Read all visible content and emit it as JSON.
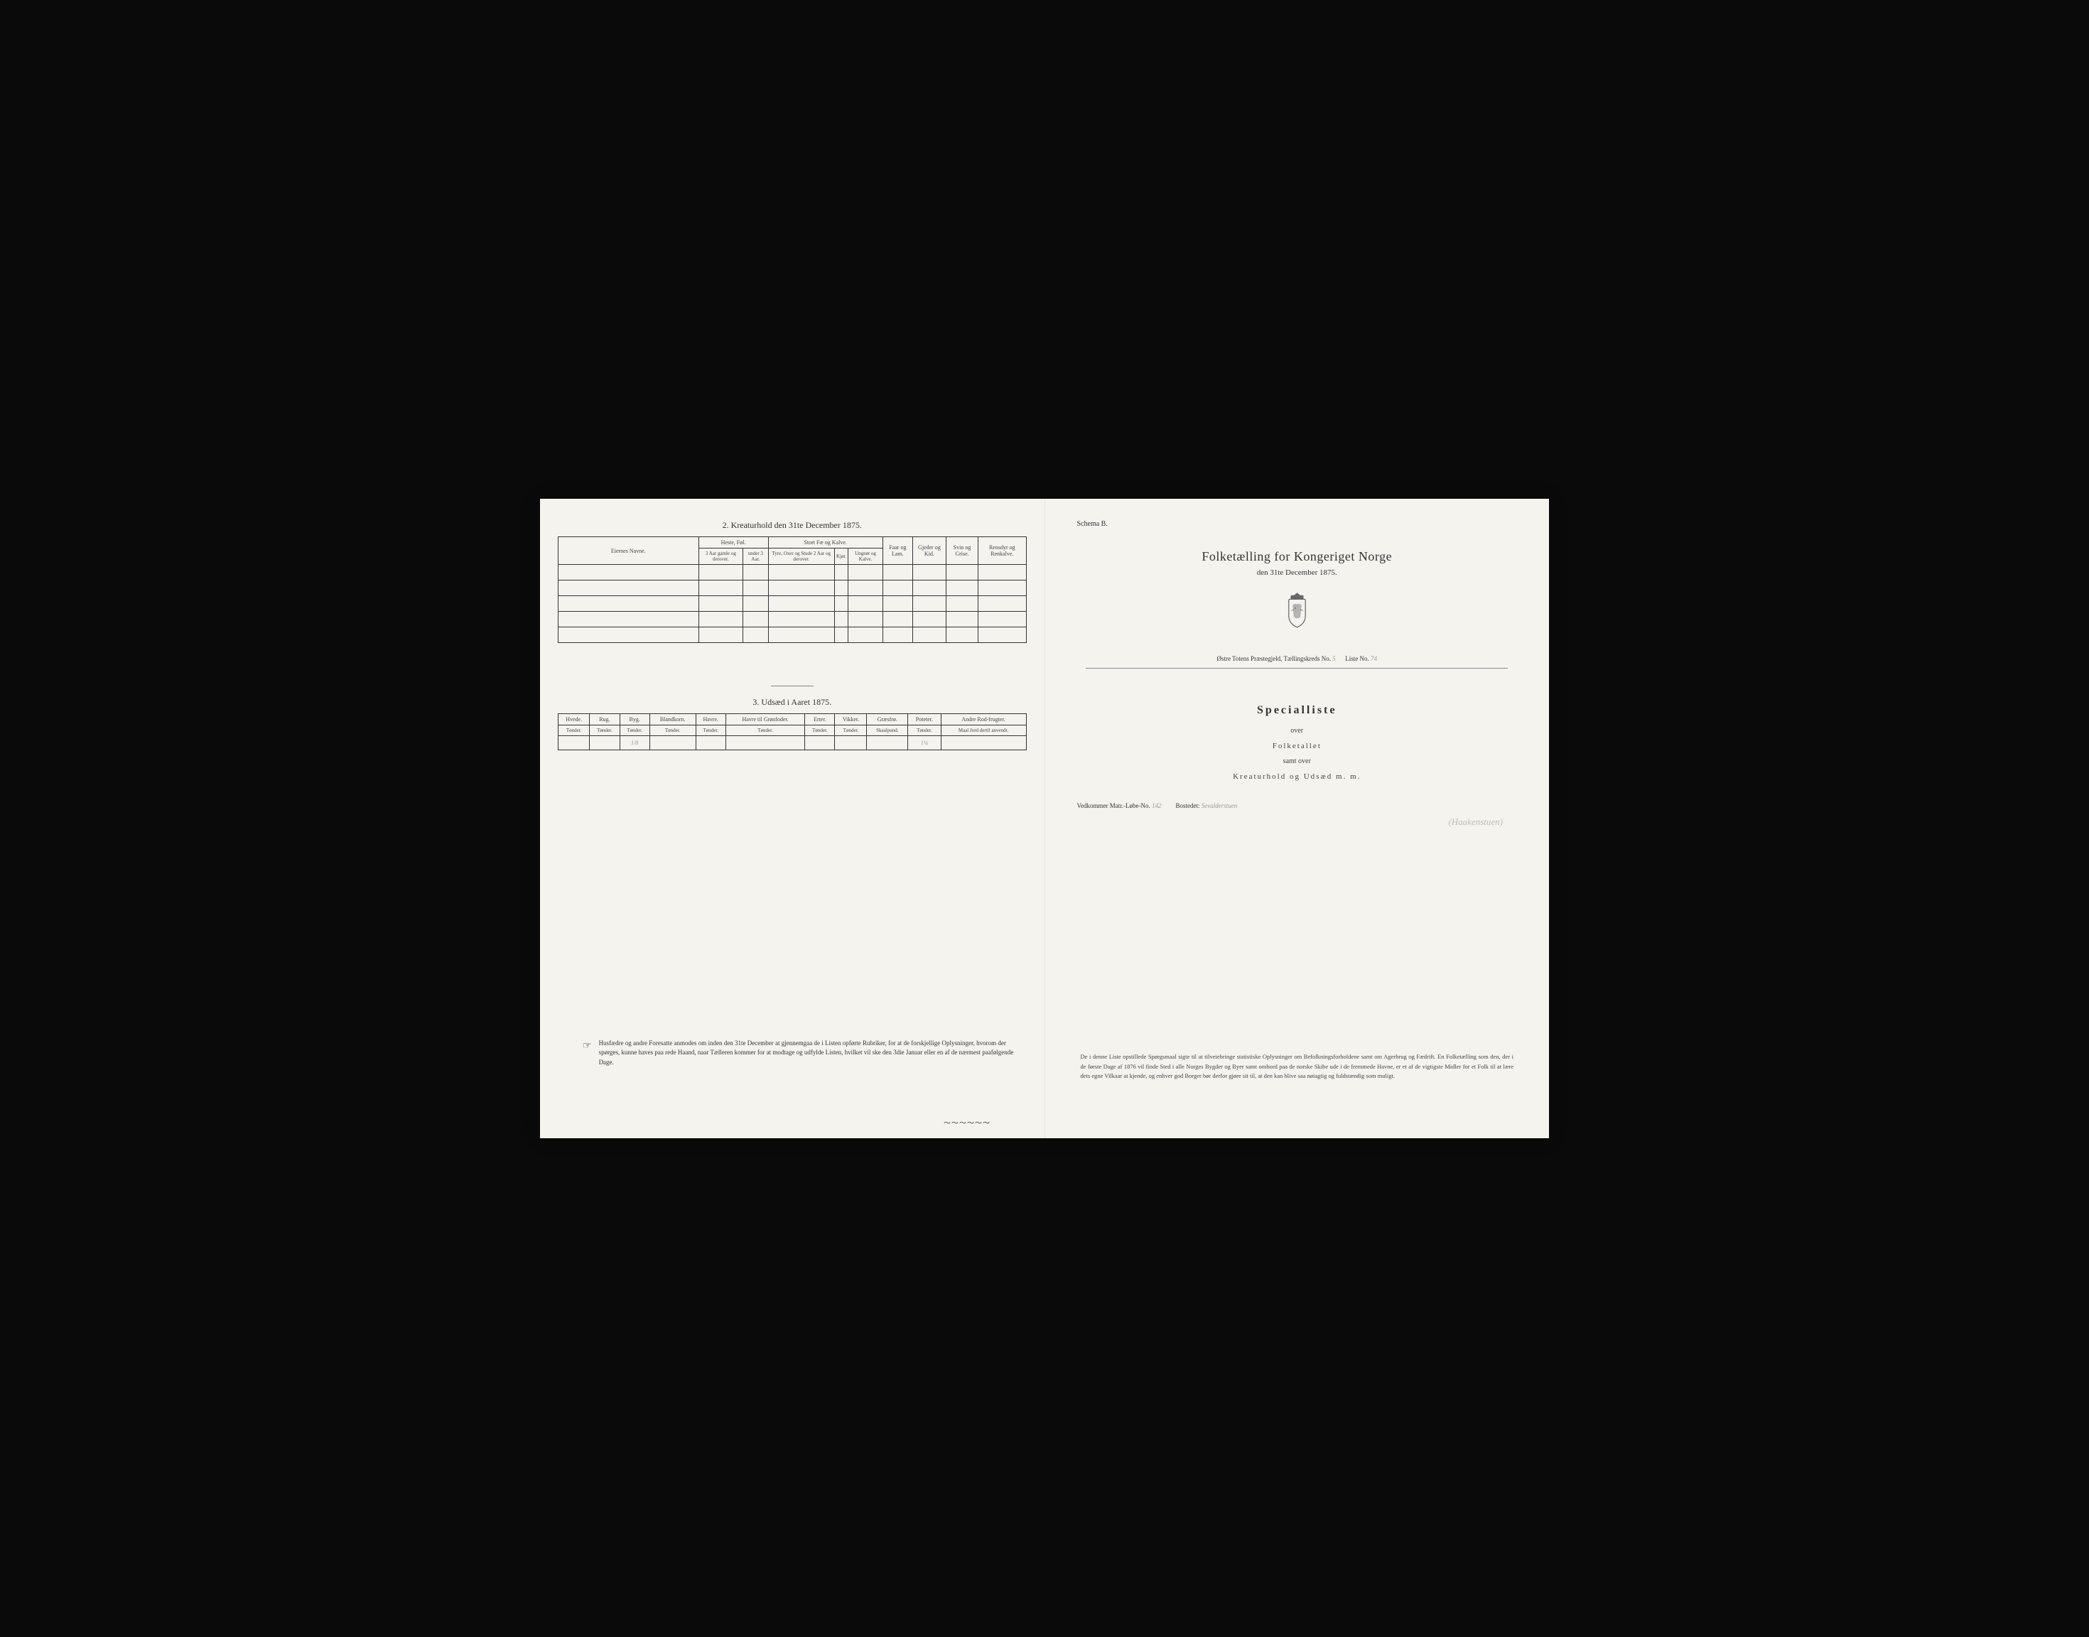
{
  "left_page": {
    "section2": {
      "title": "2.  Kreaturhold den 31te December 1875.",
      "headers": {
        "col1": "Eiernes Navne.",
        "group1": "Heste, Føl.",
        "group1_sub1": "3 Aar gamle og derover.",
        "group1_sub2": "under 3 Aar.",
        "group2": "Stort Fæ og Kalve.",
        "group2_sub1": "Tyre, Oxer og Stude 2 Aar og derover.",
        "group2_sub2": "Kjør.",
        "group2_sub3": "Ungnøt og Kalve.",
        "col_faar": "Faar og Lam.",
        "col_gjeder": "Gjeder og Kid.",
        "col_svin": "Svin og Grise.",
        "col_rensdyr": "Rensdyr og Renkalve."
      },
      "rows": [
        [
          "",
          "",
          "",
          "",
          "",
          "",
          "",
          "",
          "",
          ""
        ],
        [
          "",
          "",
          "",
          "",
          "",
          "",
          "",
          "",
          "",
          ""
        ],
        [
          "",
          "",
          "",
          "",
          "",
          "",
          "",
          "",
          "",
          ""
        ],
        [
          "",
          "",
          "",
          "",
          "",
          "",
          "",
          "",
          "",
          ""
        ],
        [
          "",
          "",
          "",
          "",
          "",
          "",
          "",
          "",
          "",
          ""
        ]
      ]
    },
    "section3": {
      "title": "3.  Udsæd i Aaret 1875.",
      "headers": [
        {
          "main": "Hvede.",
          "sub": "Tønder."
        },
        {
          "main": "Rug.",
          "sub": "Tønder."
        },
        {
          "main": "Byg.",
          "sub": "Tønder."
        },
        {
          "main": "Blandkorn.",
          "sub": "Tønder."
        },
        {
          "main": "Havre.",
          "sub": "Tønder."
        },
        {
          "main": "Havre til Grønfoder.",
          "sub": "Tønder."
        },
        {
          "main": "Erter.",
          "sub": "Tønder."
        },
        {
          "main": "Vikker.",
          "sub": "Tønder."
        },
        {
          "main": "Græsfrø.",
          "sub": "Skaalpund."
        },
        {
          "main": "Poteter.",
          "sub": "Tønder."
        },
        {
          "main": "Andre Rod-frugter.",
          "sub": "Maal Jord dertil anvendt."
        }
      ],
      "values": [
        "",
        "",
        "1/8",
        "",
        "",
        "",
        "",
        "",
        "",
        "1¼",
        ""
      ]
    },
    "footer_note": "Husfædre og andre Foresatte anmodes om inden den 31te December at gjennemgaa de i Listen opførte Rubriker, for at de forskjellige Oplysninger, hvorom der spørges, kunne haves paa rede Haand, naar Tælleren kommer for at modtage og udfylde Listen, hvilket vil ske den 3die Januar eller en af de nærmest paafølgende Dage."
  },
  "right_page": {
    "schema": "Schema B.",
    "main_title": "Folketælling for Kongeriget Norge",
    "date": "den 31te December 1875.",
    "region": "Østre Totens Præstegjeld,  Tællingskreds No.",
    "region_kreds": "5",
    "region_liste_label": "Liste No.",
    "region_liste": "74",
    "special_title": "Specialliste",
    "over": "over",
    "folketallet": "Folketallet",
    "samt_over": "samt over",
    "kreaturhold": "Kreaturhold og Udsæd m. m.",
    "matr_label": "Vedkommer Matr.-Løbe-No.",
    "matr_value": "142",
    "bosted_label": "Bostedet:",
    "bosted_value": "Sevalderstuen",
    "bosted_value2": "(Haakenstuen)",
    "footer": "De i denne Liste opstillede Spørgsmaal sigte til at tilveiebringe statistiske Oplysninger om Befolkningsforholdene samt om Agerbrug og Fædrift.  En Folketælling som den, der i de første Dage af 1876 vil finde Sted i alle Norges Bygder og Byer samt ombord paa de norske Skibe ude i de fremmede Havne, er et af de vigtigste Midler for et Folk til at lære dets egne Vilkaar at kjende, og enhver god Borger bør derfor gjøre sit til, at den kan blive saa nøiagtig og fuldstændig som muligt."
  },
  "colors": {
    "paper": "#f5f3ee",
    "ink": "#333333",
    "frame": "#0a0a0a"
  }
}
